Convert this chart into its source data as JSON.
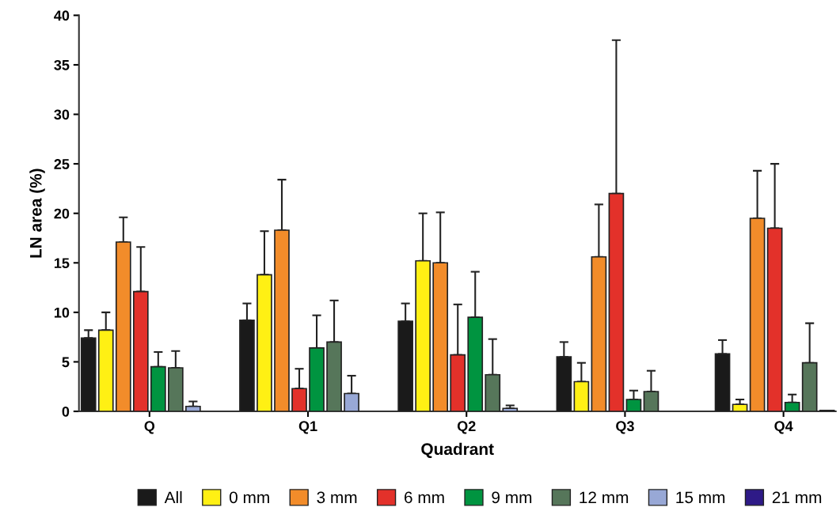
{
  "chart_data": {
    "type": "bar",
    "xlabel": "Quadrant",
    "ylabel": "LN area (%)",
    "categories": [
      "Q",
      "Q1",
      "Q2",
      "Q3",
      "Q4"
    ],
    "series": [
      {
        "name": "All",
        "color": "#1a1a1a",
        "values": [
          7.4,
          9.2,
          9.1,
          5.5,
          5.8
        ],
        "errors": [
          [
            7.4,
            8.2
          ],
          [
            9.2,
            10.9
          ],
          [
            9.1,
            10.9
          ],
          [
            5.5,
            7.0
          ],
          [
            5.8,
            7.2
          ]
        ]
      },
      {
        "name": "0 mm",
        "color": "#fff014",
        "values": [
          8.2,
          13.8,
          15.2,
          3.0,
          0.7
        ],
        "errors": [
          [
            8.2,
            10.0
          ],
          [
            13.8,
            18.2
          ],
          [
            15.2,
            20.0
          ],
          [
            3.0,
            4.9
          ],
          [
            0.7,
            1.2
          ]
        ]
      },
      {
        "name": "3 mm",
        "color": "#f28c2a",
        "values": [
          17.1,
          18.3,
          15.0,
          15.6,
          19.5
        ],
        "errors": [
          [
            17.1,
            19.6
          ],
          [
            18.3,
            23.4
          ],
          [
            15.0,
            20.1
          ],
          [
            15.6,
            20.9
          ],
          [
            19.5,
            24.3
          ]
        ]
      },
      {
        "name": "6 mm",
        "color": "#e3312a",
        "values": [
          12.1,
          2.3,
          5.7,
          22.0,
          18.5
        ],
        "errors": [
          [
            12.1,
            16.6
          ],
          [
            2.3,
            4.3
          ],
          [
            5.7,
            10.8
          ],
          [
            22.0,
            37.5
          ],
          [
            18.5,
            25.0
          ]
        ]
      },
      {
        "name": "9 mm",
        "color": "#009440",
        "values": [
          4.5,
          6.4,
          9.5,
          1.2,
          0.9
        ],
        "errors": [
          [
            4.5,
            6.0
          ],
          [
            6.4,
            9.7
          ],
          [
            9.5,
            14.1
          ],
          [
            1.2,
            2.1
          ],
          [
            0.9,
            1.7
          ]
        ]
      },
      {
        "name": "12 mm",
        "color": "#56765a",
        "values": [
          4.4,
          7.0,
          3.7,
          2.0,
          4.9
        ],
        "errors": [
          [
            4.4,
            6.1
          ],
          [
            7.0,
            11.2
          ],
          [
            3.7,
            7.3
          ],
          [
            2.0,
            4.1
          ],
          [
            4.9,
            8.9
          ]
        ]
      },
      {
        "name": "15 mm",
        "color": "#98a8d6",
        "values": [
          0.5,
          1.8,
          0.3,
          null,
          0.1
        ],
        "errors": [
          [
            0.5,
            1.0
          ],
          [
            1.8,
            3.6
          ],
          [
            0.3,
            0.6
          ],
          null,
          null
        ]
      },
      {
        "name": "21 mm",
        "color": "#2e1a87",
        "values": [
          null,
          null,
          null,
          null,
          null
        ]
      }
    ],
    "ylim": [
      0,
      40
    ],
    "yticks": [
      0,
      5,
      10,
      15,
      20,
      25,
      30,
      35,
      40
    ],
    "grid": false,
    "legend": "bottom"
  }
}
